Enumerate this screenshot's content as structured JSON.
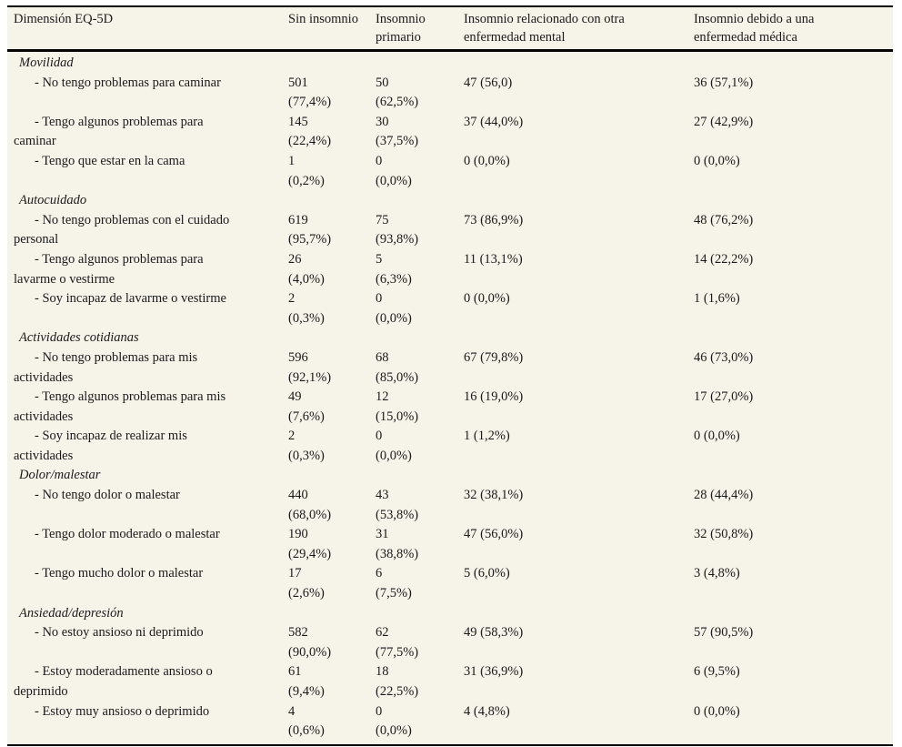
{
  "table": {
    "columns": [
      "Dimensión EQ-5D",
      "Sin insomnio",
      "Insomnio\nprimario",
      "Insomnio relacionado con otra\nenfermedad mental",
      "Insomnio debido a una\nenfermedad médica"
    ],
    "sections": [
      {
        "name": "Movilidad",
        "rows": [
          {
            "label": "- No tengo problemas para caminar",
            "values": [
              "501\n(77,4%)",
              "50\n(62,5%)",
              "47 (56,0)",
              "36 (57,1%)"
            ]
          },
          {
            "label": "- Tengo algunos problemas para\ncaminar",
            "values": [
              "145\n(22,4%)",
              "30\n(37,5%)",
              "37 (44,0%)",
              "27 (42,9%)"
            ]
          },
          {
            "label": "- Tengo que estar en la cama",
            "values": [
              "1\n(0,2%)",
              "0\n(0,0%)",
              "0 (0,0%)",
              "0 (0,0%)"
            ]
          }
        ]
      },
      {
        "name": "Autocuidado",
        "rows": [
          {
            "label": "- No tengo problemas con el cuidado\npersonal",
            "values": [
              "619\n(95,7%)",
              "75\n(93,8%)",
              "73 (86,9%)",
              "48 (76,2%)"
            ]
          },
          {
            "label": "- Tengo algunos problemas para\nlavarme o vestirme",
            "values": [
              "26\n(4,0%)",
              "5\n(6,3%)",
              "11 (13,1%)",
              "14 (22,2%)"
            ]
          },
          {
            "label": "- Soy incapaz de lavarme o vestirme",
            "values": [
              "2\n(0,3%)",
              "0\n(0,0%)",
              "0 (0,0%)",
              "1 (1,6%)"
            ]
          }
        ]
      },
      {
        "name": "Actividades cotidianas",
        "rows": [
          {
            "label": "- No tengo problemas para mis\nactividades",
            "values": [
              "596\n(92,1%)",
              "68\n(85,0%)",
              "67 (79,8%)",
              "46 (73,0%)"
            ]
          },
          {
            "label": "- Tengo algunos problemas para mis\nactividades",
            "values": [
              "49\n(7,6%)",
              "12\n(15,0%)",
              "16 (19,0%)",
              "17 (27,0%)"
            ]
          },
          {
            "label": "- Soy incapaz de realizar mis\nactividades",
            "values": [
              "2\n(0,3%)",
              "0\n(0,0%)",
              "1 (1,2%)",
              "0 (0,0%)"
            ]
          }
        ]
      },
      {
        "name": "Dolor/malestar",
        "rows": [
          {
            "label": "- No tengo dolor o malestar",
            "values": [
              "440\n(68,0%)",
              "43\n(53,8%)",
              "32 (38,1%)",
              "28 (44,4%)"
            ]
          },
          {
            "label": "- Tengo dolor moderado o malestar",
            "values": [
              "190\n(29,4%)",
              "31\n(38,8%)",
              "47 (56,0%)",
              "32 (50,8%)"
            ]
          },
          {
            "label": "- Tengo mucho dolor o malestar",
            "values": [
              "17\n(2,6%)",
              "6\n(7,5%)",
              "5 (6,0%)",
              "3 (4,8%)"
            ]
          }
        ]
      },
      {
        "name": "Ansiedad/depresión",
        "rows": [
          {
            "label": "- No estoy ansioso ni deprimido",
            "values": [
              "582\n(90,0%)",
              "62\n(77,5%)",
              "49 (58,3%)",
              "57 (90,5%)"
            ]
          },
          {
            "label": "- Estoy moderadamente ansioso o\ndeprimido",
            "values": [
              "61\n(9,4%)",
              "18\n(22,5%)",
              "31 (36,9%)",
              "6 (9,5%)"
            ]
          },
          {
            "label": "- Estoy muy ansioso o deprimido",
            "values": [
              "4\n(0,6%)",
              "0\n(0,0%)",
              "4 (4,8%)",
              "0 (0,0%)"
            ]
          }
        ]
      }
    ],
    "colors": {
      "table_background": "#f6f3e9",
      "rule": "#050505",
      "text": "#1a1a1a"
    }
  }
}
